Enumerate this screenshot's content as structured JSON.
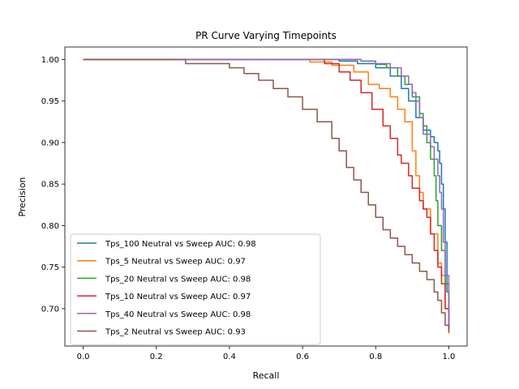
{
  "chart_data": {
    "type": "line",
    "title": "PR Curve Varying Timepoints",
    "xlabel": "Recall",
    "ylabel": "Precision",
    "xlim": [
      -0.05,
      1.05
    ],
    "ylim": [
      0.655,
      1.015
    ],
    "xticks": [
      0.0,
      0.2,
      0.4,
      0.6,
      0.8,
      1.0
    ],
    "xtick_labels": [
      "0.0",
      "0.2",
      "0.4",
      "0.6",
      "0.8",
      "1.0"
    ],
    "yticks": [
      0.7,
      0.75,
      0.8,
      0.85,
      0.9,
      0.95,
      1.0
    ],
    "ytick_labels": [
      "0.70",
      "0.75",
      "0.80",
      "0.85",
      "0.90",
      "0.95",
      "1.00"
    ],
    "grid": false,
    "legend_position": "lower-left",
    "series": [
      {
        "name": "Tps_100 Neutral vs Sweep AUC: 0.98",
        "color": "#1f77b4",
        "x": [
          0.0,
          0.6,
          0.7,
          0.75,
          0.8,
          0.84,
          0.87,
          0.89,
          0.91,
          0.93,
          0.95,
          0.96,
          0.97,
          0.975,
          0.98,
          0.985,
          0.99,
          0.995,
          1.0
        ],
        "y": [
          1.0,
          1.0,
          0.998,
          0.995,
          0.99,
          0.98,
          0.965,
          0.95,
          0.93,
          0.915,
          0.907,
          0.9,
          0.89,
          0.875,
          0.85,
          0.82,
          0.78,
          0.72,
          0.675
        ]
      },
      {
        "name": "Tps_5 Neutral vs Sweep AUC: 0.97",
        "color": "#ff7f0e",
        "x": [
          0.0,
          0.55,
          0.62,
          0.68,
          0.74,
          0.78,
          0.81,
          0.84,
          0.86,
          0.88,
          0.9,
          0.91,
          0.92,
          0.93,
          0.95,
          0.97,
          0.98,
          0.99,
          1.0
        ],
        "y": [
          1.0,
          1.0,
          0.997,
          0.993,
          0.985,
          0.97,
          0.965,
          0.955,
          0.94,
          0.925,
          0.89,
          0.86,
          0.84,
          0.82,
          0.79,
          0.755,
          0.74,
          0.7,
          0.67
        ]
      },
      {
        "name": "Tps_20 Neutral vs Sweep AUC: 0.98",
        "color": "#2ca02c",
        "x": [
          0.0,
          0.7,
          0.76,
          0.8,
          0.83,
          0.86,
          0.88,
          0.9,
          0.92,
          0.93,
          0.94,
          0.95,
          0.96,
          0.965,
          0.97,
          0.98,
          0.99,
          1.0
        ],
        "y": [
          1.0,
          1.0,
          0.998,
          0.994,
          0.99,
          0.98,
          0.97,
          0.955,
          0.935,
          0.92,
          0.9,
          0.88,
          0.86,
          0.83,
          0.8,
          0.77,
          0.73,
          0.69
        ]
      },
      {
        "name": "Tps_10 Neutral vs Sweep AUC: 0.97",
        "color": "#d62728",
        "x": [
          0.0,
          0.6,
          0.66,
          0.7,
          0.73,
          0.76,
          0.79,
          0.82,
          0.84,
          0.86,
          0.87,
          0.89,
          0.9,
          0.92,
          0.93,
          0.94,
          0.95,
          0.96,
          0.97,
          0.98,
          0.99,
          1.0
        ],
        "y": [
          1.0,
          1.0,
          0.995,
          0.985,
          0.975,
          0.96,
          0.94,
          0.92,
          0.905,
          0.885,
          0.875,
          0.86,
          0.845,
          0.83,
          0.82,
          0.81,
          0.79,
          0.77,
          0.75,
          0.73,
          0.7,
          0.675
        ]
      },
      {
        "name": "Tps_40 Neutral vs Sweep AUC: 0.98",
        "color": "#9467bd",
        "x": [
          0.0,
          0.7,
          0.76,
          0.8,
          0.84,
          0.87,
          0.89,
          0.9,
          0.91,
          0.92,
          0.93,
          0.95,
          0.96,
          0.97,
          0.975,
          0.98,
          0.985,
          0.99,
          1.0
        ],
        "y": [
          1.0,
          1.0,
          0.998,
          0.995,
          0.99,
          0.98,
          0.97,
          0.96,
          0.95,
          0.93,
          0.91,
          0.895,
          0.88,
          0.86,
          0.84,
          0.82,
          0.78,
          0.74,
          0.68
        ]
      },
      {
        "name": "Tps_2 Neutral vs Sweep AUC: 0.93",
        "color": "#8c564b",
        "x": [
          0.0,
          0.28,
          0.35,
          0.4,
          0.44,
          0.48,
          0.52,
          0.56,
          0.6,
          0.64,
          0.68,
          0.7,
          0.72,
          0.74,
          0.76,
          0.78,
          0.8,
          0.82,
          0.84,
          0.86,
          0.88,
          0.9,
          0.92,
          0.94,
          0.96,
          0.97,
          0.98,
          0.99,
          1.0
        ],
        "y": [
          1.0,
          0.995,
          0.995,
          0.99,
          0.983,
          0.975,
          0.965,
          0.955,
          0.94,
          0.925,
          0.905,
          0.89,
          0.87,
          0.855,
          0.84,
          0.825,
          0.81,
          0.795,
          0.785,
          0.775,
          0.765,
          0.755,
          0.745,
          0.735,
          0.72,
          0.71,
          0.695,
          0.68,
          0.672
        ]
      }
    ]
  }
}
